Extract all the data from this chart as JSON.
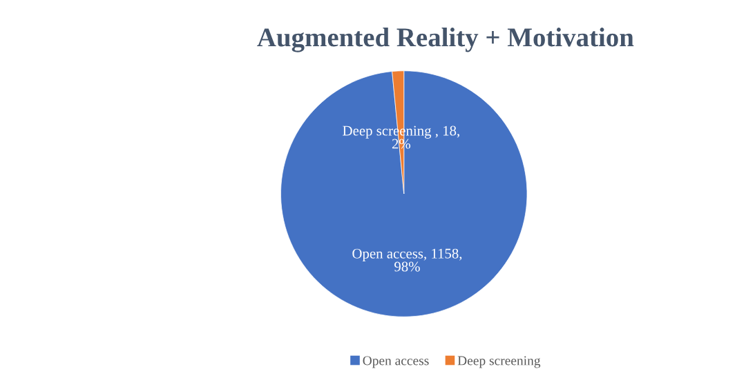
{
  "chart_data": {
    "type": "pie",
    "title": "Augmented Reality + Motivation",
    "categories": [
      "Open access",
      "Deep screening"
    ],
    "values": [
      1158,
      18
    ],
    "colors": [
      "#4472c4",
      "#ed7d31"
    ],
    "value_labels": [
      "Open access, 1158,\n98%",
      "Deep screening , 18,\n2%"
    ],
    "legend": "bottom"
  }
}
